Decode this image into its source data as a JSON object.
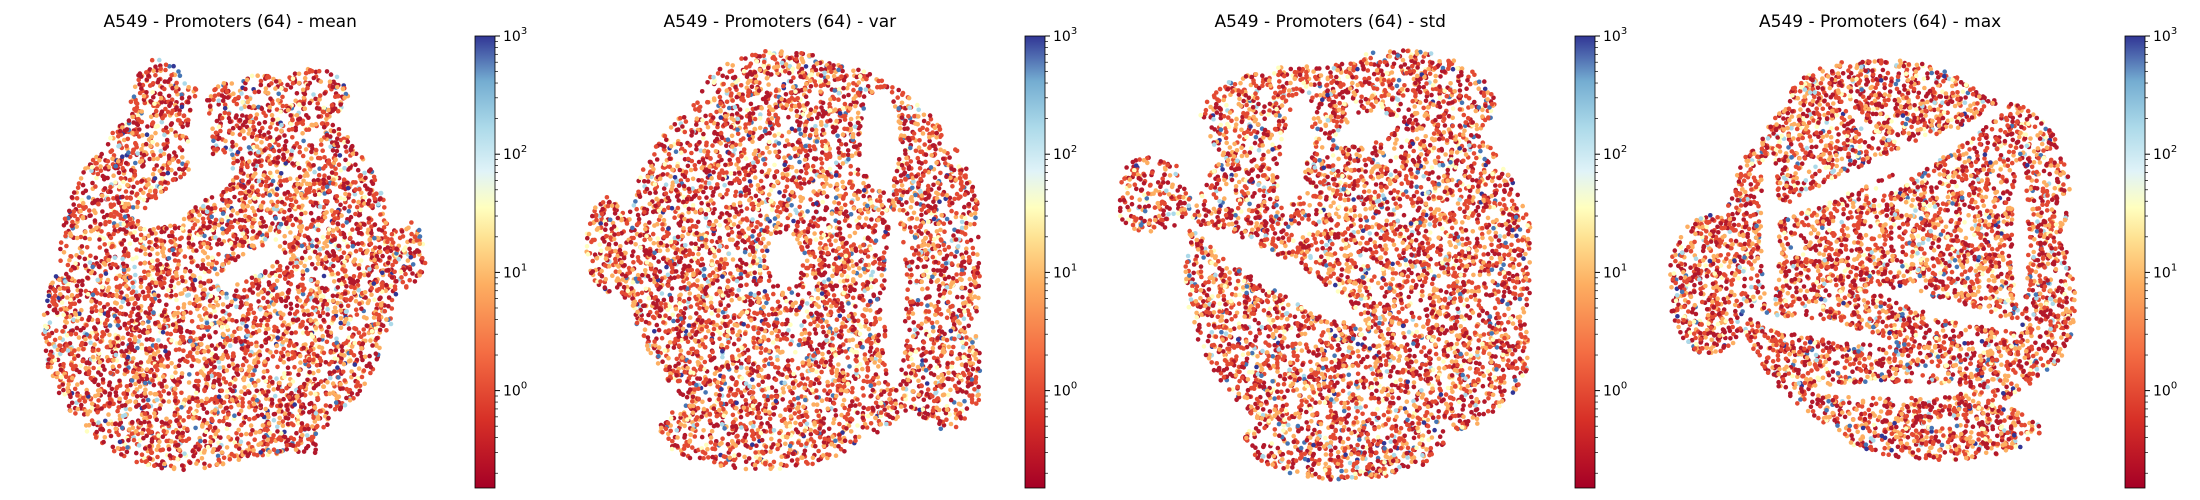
{
  "chart_data": [
    {
      "type": "scatter",
      "title": "A549 - Promoters (64) - mean",
      "colorbar": {
        "scale": "log",
        "colormap": "RdYlBu",
        "range": [
          0.15,
          1000
        ],
        "ticks": [
          {
            "base": "10",
            "exp": "0",
            "value": 1
          },
          {
            "base": "10",
            "exp": "1",
            "value": 10
          },
          {
            "base": "10",
            "exp": "2",
            "value": 100
          },
          {
            "base": "10",
            "exp": "3",
            "value": 1000
          }
        ]
      },
      "shape": "mean"
    },
    {
      "type": "scatter",
      "title": "A549 - Promoters (64) - var",
      "colorbar": {
        "scale": "log",
        "colormap": "RdYlBu",
        "range": [
          0.15,
          1000
        ],
        "ticks": [
          {
            "base": "10",
            "exp": "0",
            "value": 1
          },
          {
            "base": "10",
            "exp": "1",
            "value": 10
          },
          {
            "base": "10",
            "exp": "2",
            "value": 100
          },
          {
            "base": "10",
            "exp": "3",
            "value": 1000
          }
        ]
      },
      "shape": "var"
    },
    {
      "type": "scatter",
      "title": "A549 - Promoters (64) - std",
      "colorbar": {
        "scale": "log",
        "colormap": "RdYlBu",
        "range": [
          0.15,
          1000
        ],
        "ticks": [
          {
            "base": "10",
            "exp": "0",
            "value": 1
          },
          {
            "base": "10",
            "exp": "1",
            "value": 10
          },
          {
            "base": "10",
            "exp": "2",
            "value": 100
          },
          {
            "base": "10",
            "exp": "3",
            "value": 1000
          }
        ]
      },
      "shape": "std"
    },
    {
      "type": "scatter",
      "title": "A549 - Promoters (64) - max",
      "colorbar": {
        "scale": "log",
        "colormap": "RdYlBu",
        "range": [
          0.15,
          1000
        ],
        "ticks": [
          {
            "base": "10",
            "exp": "0",
            "value": 1
          },
          {
            "base": "10",
            "exp": "1",
            "value": 10
          },
          {
            "base": "10",
            "exp": "2",
            "value": 100
          },
          {
            "base": "10",
            "exp": "3",
            "value": 1000
          }
        ]
      },
      "shape": "max"
    }
  ],
  "colors": {
    "low": "#b2182b",
    "mid_low": "#e34a33",
    "mid": "#fdae61",
    "mid_high": "#ffffbf",
    "high_low": "#abd9e9",
    "high": "#4575b4",
    "top": "#313695"
  }
}
